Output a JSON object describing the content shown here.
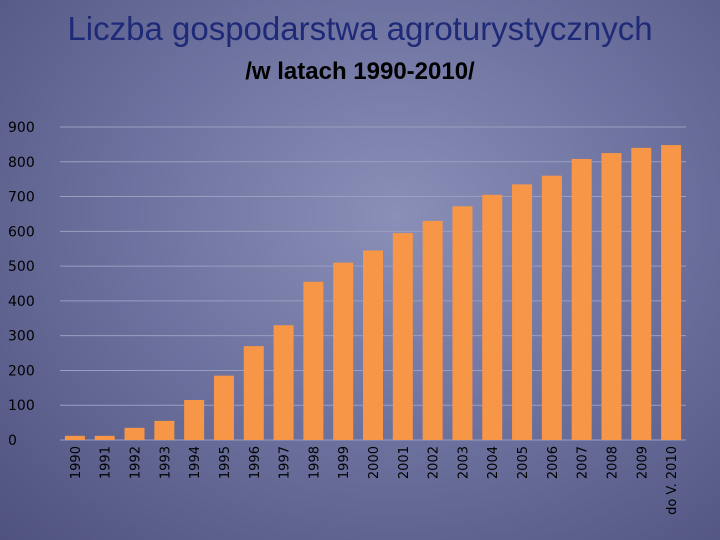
{
  "title": "Liczba gospodarstwa agroturystycznych",
  "subtitle": "/w latach 1990-2010/",
  "colors": {
    "bar": "#f79646",
    "title": "#1e2a78",
    "axis_text": "#000000",
    "grid": "#9a9ec0"
  },
  "chart_data": {
    "type": "bar",
    "title": "Liczba gospodarstwa agroturystycznych",
    "subtitle": "/w latach 1990-2010/",
    "xlabel": "",
    "ylabel": "",
    "categories": [
      "1990",
      "1991",
      "1992",
      "1993",
      "1994",
      "1995",
      "1996",
      "1997",
      "1998",
      "1999",
      "2000",
      "2001",
      "2002",
      "2003",
      "2004",
      "2005",
      "2006",
      "2007",
      "2008",
      "2009",
      "do V. 2010"
    ],
    "values": [
      12,
      12,
      35,
      55,
      115,
      185,
      270,
      330,
      455,
      510,
      545,
      595,
      630,
      672,
      705,
      735,
      760,
      808,
      825,
      840,
      848
    ],
    "ylim": [
      0,
      900
    ],
    "yticks": [
      "0",
      "100",
      "200",
      "300",
      "400",
      "500",
      "600",
      "700",
      "800",
      "900"
    ],
    "grid": true,
    "legend": "none"
  }
}
